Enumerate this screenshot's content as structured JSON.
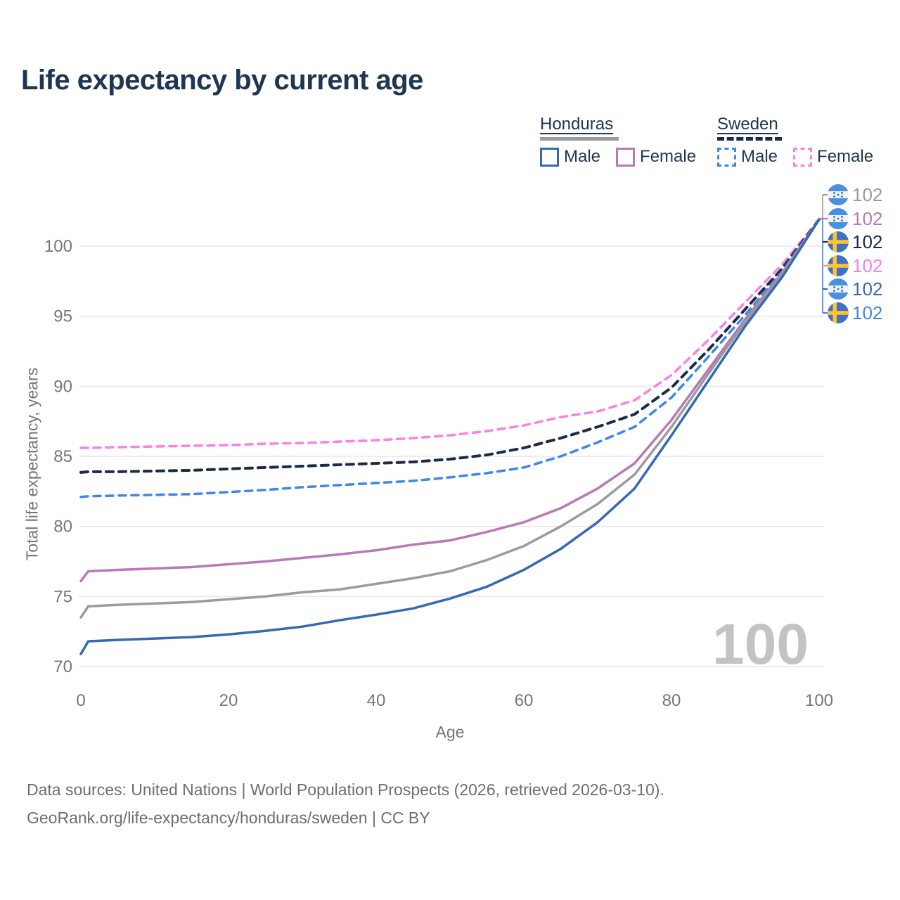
{
  "title": "Life expectancy by current age",
  "legend": {
    "groups": [
      {
        "country": "Honduras",
        "line_style": "solid",
        "line_color": "#9b9b9b",
        "items": [
          {
            "label": "Male",
            "color": "#3569b4",
            "dashed": false
          },
          {
            "label": "Female",
            "color": "#b77ab4",
            "dashed": false
          }
        ]
      },
      {
        "country": "Sweden",
        "line_style": "dashed",
        "line_color": "#1b2b45",
        "items": [
          {
            "label": "Male",
            "color": "#3d87e8",
            "dashed": true
          },
          {
            "label": "Female",
            "color": "#fb80e3",
            "dashed": true
          }
        ]
      }
    ]
  },
  "end_labels": [
    {
      "value": "102",
      "flag": "honduras",
      "color": "#9b9b9b",
      "series": "Honduras total"
    },
    {
      "value": "102",
      "flag": "honduras",
      "color": "#b77ab4",
      "series": "Honduras female"
    },
    {
      "value": "102",
      "flag": "sweden",
      "color": "#1b2b45",
      "series": "Sweden total"
    },
    {
      "value": "102",
      "flag": "sweden",
      "color": "#fb80e3",
      "series": "Sweden female"
    },
    {
      "value": "102",
      "flag": "honduras",
      "color": "#3569b4",
      "series": "Honduras male"
    },
    {
      "value": "102",
      "flag": "sweden",
      "color": "#3d87e8",
      "series": "Sweden male"
    }
  ],
  "watermark": "100",
  "axes": {
    "x": {
      "label": "Age",
      "ticks": [
        0,
        20,
        40,
        60,
        80,
        100
      ]
    },
    "y": {
      "label": "Total life expectancy, years",
      "ticks": [
        70,
        75,
        80,
        85,
        90,
        95,
        100
      ]
    }
  },
  "footer": {
    "line1": "Data sources: United Nations | World Population Prospects (2026, retrieved 2026-03-10).",
    "line2": "GeoRank.org/life-expectancy/honduras/sweden | CC BY"
  },
  "chart_data": {
    "type": "line",
    "title": "Life expectancy by current age",
    "xlabel": "Age",
    "ylabel": "Total life expectancy, years",
    "xlim": [
      0,
      100
    ],
    "ylim": [
      70,
      102.5
    ],
    "grid": "horizontal",
    "legend_position": "top-right",
    "x": [
      0,
      1,
      5,
      10,
      15,
      20,
      25,
      30,
      35,
      40,
      45,
      50,
      55,
      60,
      65,
      70,
      75,
      80,
      85,
      90,
      95,
      100
    ],
    "series": [
      {
        "name": "Sweden female",
        "country": "Sweden",
        "sex": "female",
        "color": "#fb80e3",
        "dash": true,
        "width": 3.5,
        "values": [
          85.6,
          85.6,
          85.65,
          85.7,
          85.75,
          85.8,
          85.9,
          85.95,
          86.05,
          86.15,
          86.3,
          86.5,
          86.8,
          87.2,
          87.8,
          88.2,
          89.0,
          90.8,
          93.3,
          96.0,
          98.7,
          101.9
        ]
      },
      {
        "name": "Sweden total",
        "country": "Sweden",
        "sex": "both",
        "color": "#1b2b45",
        "dash": true,
        "width": 4,
        "values": [
          83.85,
          83.9,
          83.9,
          83.95,
          84.0,
          84.1,
          84.2,
          84.3,
          84.4,
          84.5,
          84.6,
          84.8,
          85.1,
          85.6,
          86.3,
          87.1,
          88.0,
          89.9,
          92.6,
          95.5,
          98.4,
          101.9
        ]
      },
      {
        "name": "Sweden male",
        "country": "Sweden",
        "sex": "male",
        "color": "#3d87e8",
        "dash": true,
        "width": 3.5,
        "values": [
          82.1,
          82.15,
          82.2,
          82.25,
          82.3,
          82.45,
          82.6,
          82.8,
          82.95,
          83.1,
          83.25,
          83.5,
          83.8,
          84.2,
          85.0,
          86.0,
          87.1,
          89.2,
          92.1,
          95.1,
          98.2,
          101.9
        ]
      },
      {
        "name": "Honduras female",
        "country": "Honduras",
        "sex": "female",
        "color": "#b77ab4",
        "dash": false,
        "width": 3.5,
        "values": [
          76.1,
          76.8,
          76.9,
          77.0,
          77.1,
          77.3,
          77.5,
          77.75,
          78.0,
          78.3,
          78.7,
          79.0,
          79.6,
          80.3,
          81.3,
          82.7,
          84.5,
          87.6,
          91.2,
          94.8,
          98.1,
          101.9
        ]
      },
      {
        "name": "Honduras total",
        "country": "Honduras",
        "sex": "both",
        "color": "#9b9b9b",
        "dash": false,
        "width": 3.5,
        "values": [
          73.5,
          74.3,
          74.4,
          74.5,
          74.6,
          74.8,
          75.0,
          75.3,
          75.5,
          75.9,
          76.3,
          76.8,
          77.6,
          78.6,
          80.0,
          81.6,
          83.7,
          87.1,
          90.9,
          94.6,
          98.0,
          101.9
        ]
      },
      {
        "name": "Honduras male",
        "country": "Honduras",
        "sex": "male",
        "color": "#3569b4",
        "dash": false,
        "width": 3.5,
        "values": [
          70.9,
          71.8,
          71.9,
          72.0,
          72.1,
          72.3,
          72.55,
          72.85,
          73.3,
          73.7,
          74.15,
          74.85,
          75.7,
          76.9,
          78.4,
          80.3,
          82.7,
          86.5,
          90.4,
          94.3,
          97.8,
          101.9
        ]
      }
    ]
  }
}
